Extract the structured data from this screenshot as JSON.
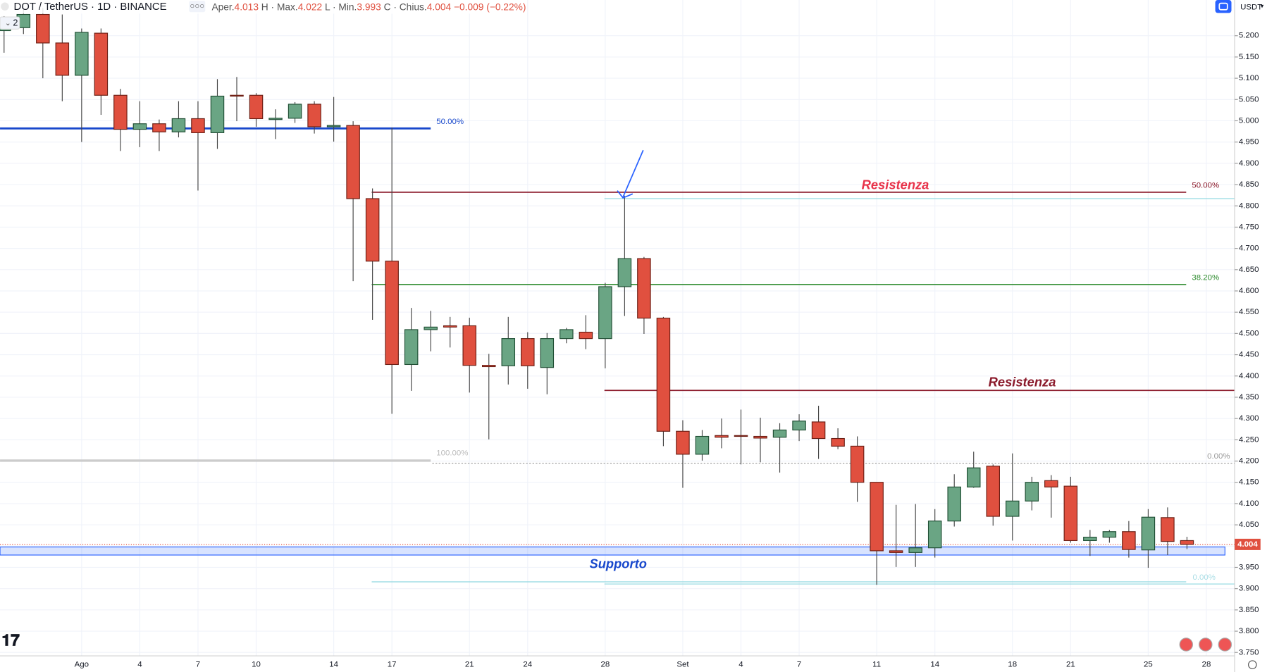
{
  "header": {
    "symbol": "DOT / TetherUS · 1D · BINANCE",
    "open_label": "Aper.",
    "open": 4.013,
    "high_label": "H · Max.",
    "high": 4.022,
    "low_label": "L · Min.",
    "low": 3.993,
    "close_label": "C · Chius.",
    "close": 4.004,
    "change": "−0.009 (−0.22%)",
    "indicators": 2,
    "currency": "USDT"
  },
  "chart_data": {
    "type": "candlestick",
    "categories": [
      null,
      null,
      null,
      null,
      "Ago",
      null,
      null,
      "4",
      null,
      null,
      "7",
      null,
      null,
      "10",
      null,
      null,
      null,
      "14",
      null,
      null,
      "17",
      null,
      null,
      null,
      "21",
      null,
      null,
      "24",
      null,
      null,
      null,
      "28",
      null,
      null,
      null,
      "Set",
      null,
      null,
      "4",
      null,
      null,
      "7",
      null,
      null,
      null,
      "11",
      null,
      null,
      "14",
      null,
      null,
      null,
      "18",
      null,
      null,
      "21",
      null,
      null,
      null,
      "25",
      null,
      null,
      "28"
    ],
    "open": [
      5.212,
      5.219,
      5.25,
      5.183,
      5.107,
      5.206,
      5.06,
      4.98,
      4.993,
      4.974,
      5.005,
      4.972,
      5.06,
      5.06,
      5.003,
      5.006,
      5.039,
      4.986,
      4.989,
      4.817,
      4.67,
      4.427,
      4.509,
      4.518,
      4.518,
      4.425,
      4.424,
      4.488,
      4.42,
      4.488,
      4.503,
      4.488,
      4.61,
      4.676,
      4.536,
      4.27,
      4.216,
      4.26,
      4.26,
      4.258,
      4.256,
      4.273,
      4.292,
      4.253,
      4.235,
      4.15,
      3.989,
      3.985,
      3.996,
      4.059,
      4.139,
      4.188,
      4.07,
      4.106,
      4.154,
      4.141,
      4.013,
      4.021,
      4.034,
      3.991,
      4.067,
      4.013,
      null
    ],
    "high": [
      5.246,
      5.274,
      5.265,
      5.25,
      5.217,
      5.217,
      5.075,
      5.046,
      5.003,
      5.046,
      5.046,
      5.098,
      5.103,
      5.065,
      5.027,
      5.044,
      5.046,
      5.056,
      4.999,
      4.841,
      4.984,
      4.56,
      4.553,
      4.539,
      4.537,
      4.452,
      4.539,
      4.503,
      4.501,
      4.513,
      4.543,
      4.619,
      4.824,
      4.68,
      4.539,
      4.296,
      4.273,
      4.3,
      4.321,
      4.302,
      4.289,
      4.31,
      4.33,
      4.277,
      4.258,
      4.15,
      4.097,
      4.099,
      4.087,
      4.169,
      4.222,
      4.192,
      4.218,
      4.163,
      4.167,
      4.163,
      4.038,
      4.038,
      4.059,
      4.087,
      4.091,
      4.022,
      null
    ],
    "low": [
      5.16,
      5.204,
      5.1,
      5.046,
      4.95,
      5.014,
      4.929,
      4.938,
      4.929,
      4.961,
      4.836,
      4.934,
      4.999,
      4.986,
      4.957,
      4.995,
      4.97,
      4.951,
      4.623,
      4.532,
      4.311,
      4.365,
      4.458,
      4.467,
      4.361,
      4.251,
      4.38,
      4.37,
      4.357,
      4.477,
      4.463,
      4.418,
      4.541,
      4.499,
      4.235,
      4.137,
      4.201,
      4.23,
      4.192,
      4.197,
      4.173,
      4.247,
      4.205,
      4.228,
      4.104,
      3.909,
      3.951,
      3.951,
      3.973,
      4.046,
      4.137,
      4.048,
      4.013,
      4.084,
      4.067,
      4.008,
      3.977,
      4.008,
      3.973,
      3.949,
      3.979,
      3.993,
      null
    ],
    "close": [
      5.231,
      5.25,
      5.183,
      5.107,
      5.208,
      5.06,
      4.98,
      4.993,
      4.974,
      5.005,
      4.972,
      5.058,
      5.058,
      5.005,
      5.006,
      5.039,
      4.986,
      4.989,
      4.817,
      4.67,
      4.427,
      4.509,
      4.515,
      4.515,
      4.425,
      4.422,
      4.488,
      4.424,
      4.488,
      4.509,
      4.488,
      4.61,
      4.676,
      4.536,
      4.27,
      4.216,
      4.258,
      4.256,
      4.258,
      4.254,
      4.273,
      4.294,
      4.253,
      4.235,
      4.15,
      3.989,
      3.985,
      3.996,
      4.059,
      4.139,
      4.184,
      4.07,
      4.106,
      4.15,
      4.139,
      4.013,
      4.021,
      4.034,
      3.992,
      4.068,
      4.011,
      4.004,
      null
    ],
    "up_color": "#6aa584",
    "down_color": "#e0503f",
    "ylim": [
      3.742,
      5.284
    ],
    "yticks": [
      {
        "value": 3.75,
        "label": "3.750"
      },
      {
        "value": 3.8,
        "label": "3.800"
      },
      {
        "value": 3.85,
        "label": "3.850"
      },
      {
        "value": 3.9,
        "label": "3.900"
      },
      {
        "value": 3.95,
        "label": "3.950"
      },
      {
        "value": 4,
        "label": "4.000"
      },
      {
        "value": 4.05,
        "label": "4.050"
      },
      {
        "value": 4.1,
        "label": "4.100"
      },
      {
        "value": 4.15,
        "label": "4.150"
      },
      {
        "value": 4.2,
        "label": "4.200"
      },
      {
        "value": 4.25,
        "label": "4.250"
      },
      {
        "value": 4.3,
        "label": "4.300"
      },
      {
        "value": 4.35,
        "label": "4.350"
      },
      {
        "value": 4.4,
        "label": "4.400"
      },
      {
        "value": 4.45,
        "label": "4.450"
      },
      {
        "value": 4.5,
        "label": "4.500"
      },
      {
        "value": 4.55,
        "label": "4.550"
      },
      {
        "value": 4.6,
        "label": "4.600"
      },
      {
        "value": 4.65,
        "label": "4.650"
      },
      {
        "value": 4.7,
        "label": "4.700"
      },
      {
        "value": 4.75,
        "label": "4.750"
      },
      {
        "value": 4.8,
        "label": "4.800"
      },
      {
        "value": 4.85,
        "label": "4.850"
      },
      {
        "value": 4.9,
        "label": "4.900"
      },
      {
        "value": 4.95,
        "label": "4.950"
      },
      {
        "value": 5,
        "label": "5.000"
      },
      {
        "value": 5.05,
        "label": "5.050"
      },
      {
        "value": 5.1,
        "label": "5.100"
      },
      {
        "value": 5.15,
        "label": "5.150"
      },
      {
        "value": 5.2,
        "label": "5.200"
      }
    ],
    "grid": true,
    "last_price": 4.004,
    "levels": [
      {
        "level": 4.982,
        "color": "#1848cc"
      },
      {
        "level": 4.832,
        "color": "#8b1a2b"
      },
      {
        "level": 4.817,
        "color": "#8fd8e0"
      },
      {
        "level": 4.615,
        "color": "#2e8b2e"
      },
      {
        "level": 4.366,
        "color": "#8b1a2b"
      },
      {
        "level": 4.201,
        "color": "#cccccc"
      },
      {
        "level": 4.195,
        "color": "#999999"
      },
      {
        "level": 3.916,
        "color": "#8fd8e0"
      },
      {
        "level": 3.911,
        "color": "#8fd8e0"
      }
    ],
    "support_zone": [
      3.979,
      3.998
    ],
    "annotations": [
      {
        "text": "50.00%",
        "color": "#1848cc"
      },
      {
        "text": "Resistenza",
        "color": "#e8334a"
      },
      {
        "text": "50.00%",
        "color": "#8b1a2b"
      },
      {
        "text": "38.20%",
        "color": "#2e8b2e"
      },
      {
        "text": "Resistenza",
        "color": "#8b1a2b"
      },
      {
        "text": "100.00%",
        "color": "#bbbbbb"
      },
      {
        "text": "0.00%",
        "color": "#999999"
      },
      {
        "text": "0.00%",
        "color": "#a8dde5"
      },
      {
        "text": "Supporto",
        "color": "#1848cc"
      }
    ]
  }
}
